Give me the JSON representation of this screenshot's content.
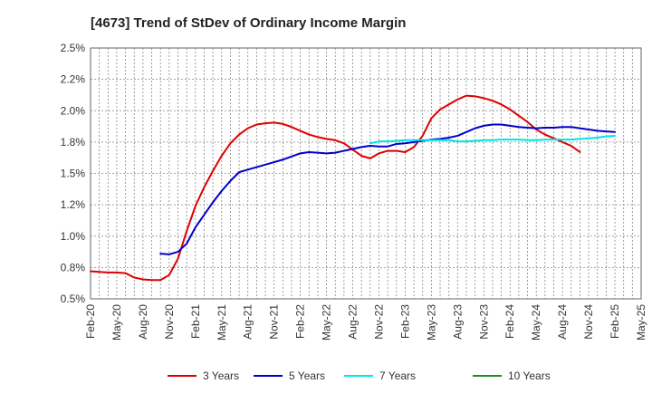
{
  "chart_data": {
    "type": "line",
    "title": "[4673]  Trend of StDev of Ordinary Income Margin",
    "xlabel": "",
    "ylabel": "",
    "ylim": [
      0.5,
      2.5
    ],
    "y_ticks": [
      {
        "value": 0.5,
        "label": "0.5%"
      },
      {
        "value": 0.75,
        "label": "0.8%"
      },
      {
        "value": 1.0,
        "label": "1.0%"
      },
      {
        "value": 1.25,
        "label": "1.2%"
      },
      {
        "value": 1.5,
        "label": "1.5%"
      },
      {
        "value": 1.75,
        "label": "1.8%"
      },
      {
        "value": 2.0,
        "label": "2.0%"
      },
      {
        "value": 2.25,
        "label": "2.2%"
      },
      {
        "value": 2.5,
        "label": "2.5%"
      }
    ],
    "x_ticks": [
      "Feb-20",
      "May-20",
      "Aug-20",
      "Nov-20",
      "Feb-21",
      "May-21",
      "Aug-21",
      "Nov-21",
      "Feb-22",
      "May-22",
      "Aug-22",
      "Nov-22",
      "Feb-23",
      "May-23",
      "Aug-23",
      "Nov-23",
      "Feb-24",
      "May-24",
      "Aug-24",
      "Nov-24",
      "Feb-25",
      "May-25"
    ],
    "grid": true,
    "legend_position": "bottom",
    "series": [
      {
        "name": "3 Years",
        "color": "#dd0000",
        "start": "Feb-20",
        "values": [
          0.72,
          0.715,
          0.71,
          0.71,
          0.705,
          0.67,
          0.655,
          0.65,
          0.65,
          0.69,
          0.82,
          1.04,
          1.24,
          1.39,
          1.52,
          1.64,
          1.74,
          1.81,
          1.86,
          1.89,
          1.9,
          1.905,
          1.895,
          1.87,
          1.84,
          1.81,
          1.79,
          1.775,
          1.765,
          1.74,
          1.69,
          1.64,
          1.62,
          1.66,
          1.68,
          1.68,
          1.67,
          1.71,
          1.8,
          1.94,
          2.01,
          2.05,
          2.09,
          2.12,
          2.115,
          2.1,
          2.08,
          2.05,
          2.01,
          1.96,
          1.91,
          1.85,
          1.81,
          1.78,
          1.75,
          1.72,
          1.67
        ]
      },
      {
        "name": "5 Years",
        "color": "#0000cc",
        "start": "Oct-20",
        "values": [
          0.86,
          0.855,
          0.875,
          0.94,
          1.07,
          1.17,
          1.27,
          1.36,
          1.44,
          1.51,
          1.53,
          1.55,
          1.57,
          1.59,
          1.61,
          1.635,
          1.66,
          1.67,
          1.665,
          1.66,
          1.665,
          1.68,
          1.695,
          1.71,
          1.72,
          1.715,
          1.715,
          1.735,
          1.74,
          1.75,
          1.76,
          1.77,
          1.775,
          1.785,
          1.8,
          1.83,
          1.86,
          1.88,
          1.89,
          1.89,
          1.88,
          1.87,
          1.865,
          1.86,
          1.865,
          1.865,
          1.87,
          1.87,
          1.86,
          1.85,
          1.84,
          1.835,
          1.83
        ]
      },
      {
        "name": "7 Years",
        "color": "#00e5e5",
        "start": "Oct-22",
        "values": [
          1.74,
          1.755,
          1.755,
          1.76,
          1.765,
          1.765,
          1.765,
          1.765,
          1.765,
          1.765,
          1.755,
          1.755,
          1.76,
          1.765,
          1.765,
          1.77,
          1.77,
          1.77,
          1.765,
          1.765,
          1.77,
          1.77,
          1.77,
          1.77,
          1.775,
          1.78,
          1.785,
          1.795,
          1.8
        ]
      },
      {
        "name": "10 Years",
        "color": "#228b22",
        "start": "",
        "values": []
      }
    ]
  }
}
